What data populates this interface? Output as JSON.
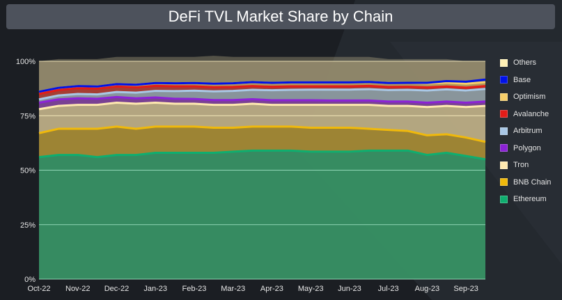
{
  "chart_data": {
    "type": "area",
    "stacked": true,
    "title": "DeFi TVL Market Share by Chain",
    "x_categories": [
      "Oct-22",
      "Nov-22",
      "Dec-22",
      "Jan-23",
      "Feb-23",
      "Mar-23",
      "Apr-23",
      "May-23",
      "Jun-23",
      "Jul-23",
      "Aug-23",
      "Sep-23"
    ],
    "y_ticks": [
      "100%",
      "75%",
      "50%",
      "25%",
      "0%"
    ],
    "ylim": [
      0,
      100
    ],
    "y_unit": "%",
    "grid": "horizontal",
    "legend_position": "right",
    "x": [
      0,
      0.5,
      1,
      1.5,
      2,
      2.5,
      3,
      3.5,
      4,
      4.5,
      5,
      5.5,
      6,
      6.5,
      7,
      7.5,
      8,
      8.5,
      9,
      9.5,
      10,
      10.5,
      11,
      11.5
    ],
    "series": [
      {
        "name": "Ethereum",
        "color": "#0fae6f",
        "values": [
          56,
          57,
          57,
          56,
          57,
          57,
          58,
          58,
          58,
          58,
          58.5,
          59,
          59,
          59,
          58.5,
          58.5,
          58.5,
          59,
          59,
          59,
          57,
          58,
          56.5,
          55
        ]
      },
      {
        "name": "BNB Chain",
        "color": "#f0b90b",
        "values": [
          11,
          12,
          12,
          13,
          13,
          12,
          12,
          12,
          12,
          11.5,
          11,
          11,
          11,
          11,
          11,
          11,
          11,
          10,
          9.5,
          9,
          9,
          8.5,
          8.5,
          8
        ]
      },
      {
        "name": "Tron",
        "color": "#ffe9b0",
        "values": [
          11,
          10.5,
          11,
          11,
          11,
          11.5,
          11,
          10.5,
          10.5,
          10.5,
          10.5,
          10.5,
          10,
          10,
          10.5,
          10.5,
          10.5,
          11,
          11,
          11.5,
          13,
          13,
          14,
          16.5
        ]
      },
      {
        "name": "Polygon",
        "color": "#8c22d6",
        "values": [
          3,
          3,
          3,
          2.8,
          2.6,
          2.5,
          2.4,
          2.3,
          2.2,
          2.2,
          2.2,
          2.1,
          2.1,
          2.1,
          2.1,
          2,
          2,
          2,
          2,
          2,
          2,
          2,
          2,
          2
        ]
      },
      {
        "name": "Arbitrum",
        "color": "#a9c8e6",
        "values": [
          1.5,
          1.8,
          2,
          2,
          2.3,
          2.6,
          3,
          3.5,
          3.8,
          4,
          4.2,
          4.3,
          4.6,
          4.8,
          4.9,
          5,
          5,
          5.2,
          5.3,
          5.4,
          5.6,
          5.6,
          5.6,
          5.8
        ]
      },
      {
        "name": "Avalanche",
        "color": "#e31c18",
        "values": [
          2.5,
          2.5,
          2.6,
          2.6,
          2.5,
          2.4,
          2.3,
          2.2,
          2,
          1.9,
          1.8,
          1.7,
          1.6,
          1.6,
          1.5,
          1.5,
          1.5,
          1.5,
          1.4,
          1.4,
          1.4,
          1.3,
          1.3,
          1.3
        ]
      },
      {
        "name": "Optimism",
        "color": "#f7cf6a",
        "values": [
          1,
          1,
          1,
          1,
          1.1,
          1.2,
          1.3,
          1.4,
          1.5,
          1.6,
          1.7,
          1.8,
          1.8,
          1.8,
          1.8,
          1.8,
          1.8,
          1.8,
          1.8,
          1.8,
          1.8,
          1.8,
          1.8,
          1.8
        ]
      },
      {
        "name": "Base",
        "color": "#0011e8",
        "values": [
          0,
          0,
          0,
          0,
          0,
          0,
          0,
          0,
          0,
          0,
          0,
          0,
          0,
          0,
          0,
          0,
          0,
          0,
          0,
          0,
          0.3,
          0.7,
          0.9,
          1.2
        ]
      },
      {
        "name": "Others",
        "color": "#fff0b5",
        "values": [
          14,
          13.2,
          12.4,
          12.6,
          12.5,
          12.8,
          12,
          12.1,
          12,
          12.8,
          12.1,
          11.6,
          11.9,
          11.7,
          11.7,
          11.7,
          11.7,
          11.5,
          11,
          10.9,
          10.9,
          10.1,
          9.4,
          8.4
        ]
      }
    ]
  }
}
